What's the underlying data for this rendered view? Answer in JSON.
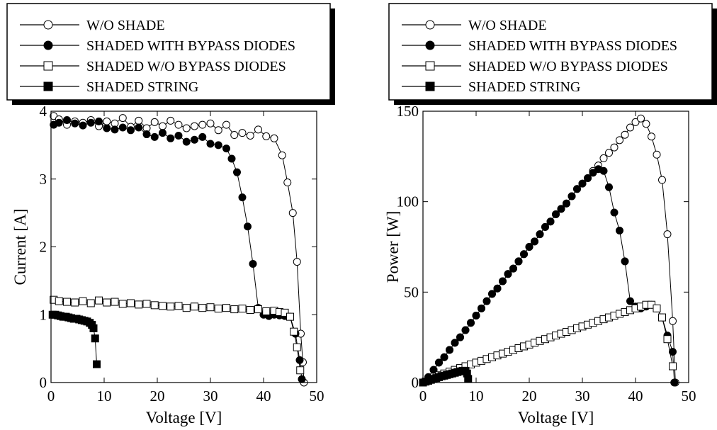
{
  "chart_data": [
    {
      "type": "line",
      "xlabel": "Voltage [V]",
      "ylabel": "Current [A]",
      "xlim": [
        0,
        50
      ],
      "ylim": [
        0,
        4
      ],
      "xticks": [
        "0",
        "10",
        "20",
        "30",
        "40",
        "50"
      ],
      "yticks": [
        "0",
        "1",
        "2",
        "3",
        "4"
      ],
      "legend_placement": "top",
      "series": [
        {
          "name": "W/O SHADE",
          "marker": "open-circle",
          "x": [
            0.5,
            1.5,
            3,
            4.5,
            6,
            7.5,
            9,
            10.5,
            12,
            13.5,
            15,
            16.5,
            18,
            19.5,
            21,
            22.5,
            24,
            25.5,
            27,
            28.5,
            30,
            31.5,
            33,
            34.5,
            36,
            37.5,
            39,
            40.5,
            42,
            43.5,
            44.5,
            45.5,
            46.3,
            47,
            47.4,
            47.6
          ],
          "y": [
            3.93,
            3.88,
            3.8,
            3.85,
            3.83,
            3.87,
            3.78,
            3.85,
            3.82,
            3.9,
            3.77,
            3.86,
            3.75,
            3.84,
            3.78,
            3.86,
            3.8,
            3.75,
            3.78,
            3.8,
            3.82,
            3.72,
            3.8,
            3.65,
            3.68,
            3.64,
            3.73,
            3.63,
            3.6,
            3.35,
            2.95,
            2.5,
            1.78,
            0.72,
            0.3,
            0.0
          ]
        },
        {
          "name": "SHADED WITH BYPASS DIODES",
          "marker": "filled-circle",
          "x": [
            0.5,
            1.5,
            3,
            4.5,
            6,
            7.5,
            9,
            10.5,
            12,
            13.5,
            15,
            16.5,
            18,
            19.5,
            21,
            22.5,
            24,
            25.5,
            27,
            28.5,
            30,
            31.5,
            33,
            34,
            35,
            36,
            37,
            38,
            39,
            40,
            41,
            42,
            43,
            44,
            45,
            46,
            46.8,
            47.2
          ],
          "y": [
            3.8,
            3.83,
            3.87,
            3.82,
            3.79,
            3.83,
            3.85,
            3.75,
            3.73,
            3.76,
            3.72,
            3.76,
            3.66,
            3.62,
            3.68,
            3.6,
            3.64,
            3.55,
            3.58,
            3.62,
            3.52,
            3.5,
            3.45,
            3.3,
            3.1,
            2.73,
            2.3,
            1.75,
            1.1,
            1.0,
            0.98,
            1.0,
            0.99,
            0.98,
            0.97,
            0.72,
            0.33,
            0.05
          ]
        },
        {
          "name": "SHADED W/O BYPASS DIODES",
          "marker": "open-square",
          "x": [
            0.5,
            1.5,
            3,
            4.5,
            6,
            7.5,
            9,
            10.5,
            12,
            13.5,
            15,
            16.5,
            18,
            19.5,
            21,
            22.5,
            24,
            25.5,
            27,
            28.5,
            30,
            31.5,
            33,
            34.5,
            36,
            37.5,
            39,
            40.5,
            42,
            43,
            44,
            45,
            45.7,
            46.3,
            46.9
          ],
          "y": [
            1.22,
            1.2,
            1.19,
            1.18,
            1.2,
            1.17,
            1.21,
            1.18,
            1.19,
            1.16,
            1.17,
            1.15,
            1.16,
            1.14,
            1.13,
            1.12,
            1.13,
            1.1,
            1.12,
            1.1,
            1.11,
            1.09,
            1.1,
            1.08,
            1.09,
            1.07,
            1.08,
            1.05,
            1.06,
            1.04,
            1.03,
            0.97,
            0.75,
            0.52,
            0.18
          ]
        },
        {
          "name": "SHADED STRING",
          "marker": "filled-square",
          "x": [
            0.3,
            0.8,
            1.3,
            1.8,
            2.3,
            2.8,
            3.3,
            3.8,
            4.3,
            4.8,
            5.3,
            5.8,
            6.3,
            6.8,
            7.3,
            7.7,
            8.0,
            8.3,
            8.6
          ],
          "y": [
            1.0,
            1.0,
            0.99,
            0.98,
            0.97,
            0.97,
            0.96,
            0.95,
            0.94,
            0.94,
            0.93,
            0.92,
            0.91,
            0.9,
            0.88,
            0.85,
            0.8,
            0.65,
            0.27
          ]
        }
      ]
    },
    {
      "type": "line",
      "xlabel": "Voltage [V]",
      "ylabel": "Power [W]",
      "xlim": [
        0,
        50
      ],
      "ylim": [
        0,
        150
      ],
      "xticks": [
        "0",
        "10",
        "20",
        "30",
        "40",
        "50"
      ],
      "yticks": [
        "0",
        "50",
        "100",
        "150"
      ],
      "legend_placement": "top",
      "series": [
        {
          "name": "W/O SHADE",
          "marker": "open-circle",
          "x": [
            0,
            1,
            2,
            3,
            4,
            5,
            6,
            7,
            8,
            9,
            10,
            11,
            12,
            13,
            14,
            15,
            16,
            17,
            18,
            19,
            20,
            21,
            22,
            23,
            24,
            25,
            26,
            27,
            28,
            29,
            30,
            31,
            32,
            33,
            34,
            35,
            36,
            37,
            38,
            39,
            40,
            41,
            42,
            43,
            44,
            45,
            46,
            47,
            47.5
          ],
          "y": [
            0,
            3,
            7,
            11,
            14,
            18,
            22,
            25,
            29,
            33,
            37,
            41,
            45,
            49,
            52,
            56,
            60,
            63,
            67,
            71,
            75,
            78,
            82,
            86,
            89,
            93,
            96,
            99,
            103,
            107,
            110,
            113,
            117,
            120,
            124,
            127,
            130,
            134,
            137,
            141,
            144,
            146,
            143,
            136,
            126,
            112,
            82,
            34,
            0
          ]
        },
        {
          "name": "SHADED WITH BYPASS DIODES",
          "marker": "filled-circle",
          "x": [
            0,
            1,
            2,
            3,
            4,
            5,
            6,
            7,
            8,
            9,
            10,
            11,
            12,
            13,
            14,
            15,
            16,
            17,
            18,
            19,
            20,
            21,
            22,
            23,
            24,
            25,
            26,
            27,
            28,
            29,
            30,
            31,
            32,
            33,
            34,
            35,
            36,
            37,
            38,
            39,
            40,
            41,
            42,
            43,
            44,
            45,
            46,
            47,
            47.3
          ],
          "y": [
            0,
            3,
            7,
            11,
            14,
            18,
            22,
            25,
            29,
            33,
            37,
            41,
            45,
            49,
            52,
            56,
            60,
            63,
            67,
            71,
            75,
            78,
            82,
            86,
            89,
            93,
            96,
            99,
            103,
            107,
            110,
            113,
            116,
            118,
            117,
            108,
            94,
            84,
            67,
            45,
            42,
            41,
            42,
            43,
            41,
            36,
            26,
            17,
            0
          ]
        },
        {
          "name": "SHADED W/O BYPASS DIODES",
          "marker": "open-square",
          "x": [
            0,
            1,
            2,
            3,
            4,
            5,
            6,
            7,
            8,
            9,
            10,
            11,
            12,
            13,
            14,
            15,
            16,
            17,
            18,
            19,
            20,
            21,
            22,
            23,
            24,
            25,
            26,
            27,
            28,
            29,
            30,
            31,
            32,
            33,
            34,
            35,
            36,
            37,
            38,
            39,
            40,
            41,
            42,
            43,
            44,
            45,
            46,
            47
          ],
          "y": [
            0,
            1,
            2,
            4,
            5,
            6,
            7,
            8,
            9,
            10,
            11,
            12,
            13,
            14,
            15,
            16,
            17,
            18,
            19,
            20,
            21,
            22,
            23,
            24,
            25,
            26,
            27,
            28,
            29,
            30,
            31,
            32,
            33,
            34,
            35,
            36,
            37,
            38,
            39,
            40,
            41,
            42,
            43,
            43,
            41,
            36,
            24,
            9
          ]
        },
        {
          "name": "SHADED STRING",
          "marker": "filled-square",
          "x": [
            0,
            0.5,
            1,
            1.5,
            2,
            2.5,
            3,
            3.5,
            4,
            4.5,
            5,
            5.5,
            6,
            6.5,
            7,
            7.5,
            8,
            8.3,
            8.5
          ],
          "y": [
            0,
            0.5,
            1,
            1.5,
            2,
            2.5,
            3,
            3.5,
            3.8,
            4.2,
            4.6,
            5,
            5.4,
            5.8,
            6.2,
            6.5,
            6.5,
            5,
            2
          ]
        }
      ]
    }
  ]
}
